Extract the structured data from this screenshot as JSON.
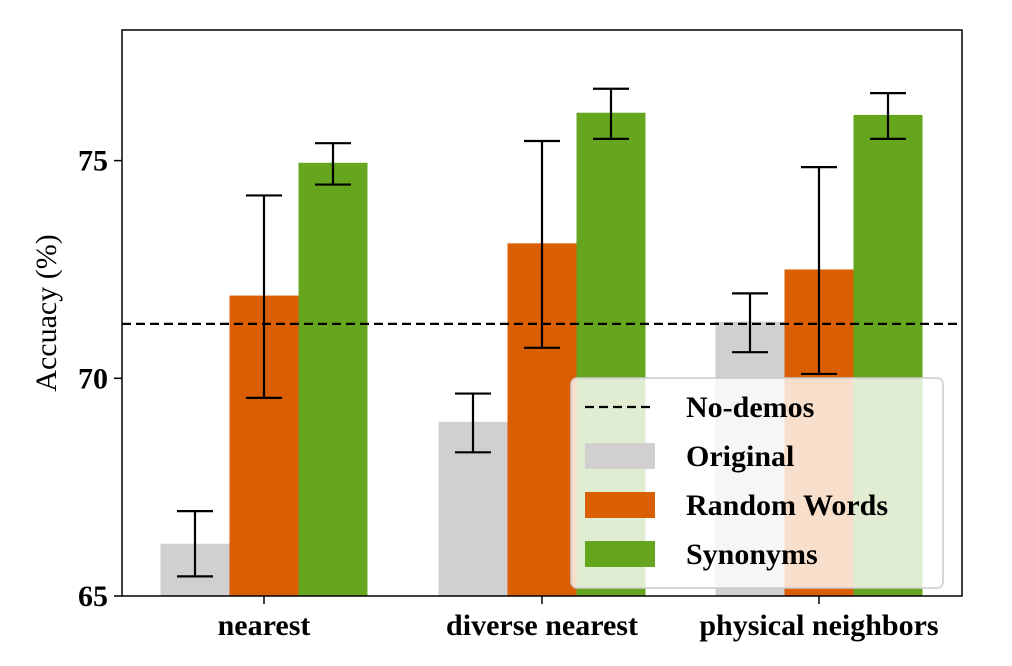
{
  "chart_data": {
    "type": "bar",
    "categories": [
      "nearest",
      "diverse nearest",
      "physical neighbors"
    ],
    "ylabel": "Accuacy (%)",
    "xlabel": "",
    "ylim": [
      65,
      78
    ],
    "yticks": [
      65,
      70,
      75
    ],
    "series": [
      {
        "name": "Original",
        "color": "#d1cfd0",
        "values": [
          66.2,
          69.0,
          71.3
        ],
        "err_low": [
          65.45,
          68.3,
          70.6
        ],
        "err_high": [
          66.95,
          69.65,
          71.95
        ]
      },
      {
        "name": "Random Words",
        "color": "#d95f02",
        "values": [
          71.9,
          73.1,
          72.5
        ],
        "err_low": [
          69.55,
          70.7,
          70.1
        ],
        "err_high": [
          74.2,
          75.45,
          74.85
        ]
      },
      {
        "name": "Synonyms",
        "color": "#66a61e",
        "values": [
          74.95,
          76.1,
          76.05
        ],
        "err_low": [
          74.45,
          75.5,
          75.5
        ],
        "err_high": [
          75.4,
          76.65,
          76.55
        ]
      }
    ],
    "baseline": {
      "name": "No-demos",
      "value": 71.25,
      "style": "dashed",
      "color": "#000000"
    },
    "legend_position": "bottom-right",
    "grid": false
  }
}
